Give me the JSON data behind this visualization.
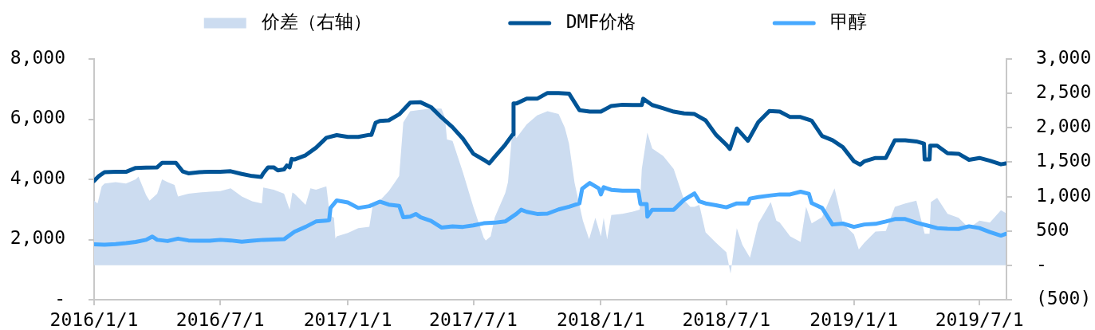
{
  "chart_data": {
    "type": "line",
    "legend": "top",
    "marker": "none",
    "line_style": "solid",
    "xlim": [
      "2016-01-01",
      "2019-08-09"
    ],
    "xticks": [
      {
        "value": "2016-01-01",
        "label": "2016/1/1"
      },
      {
        "value": "2016-07-01",
        "label": "2016/7/1"
      },
      {
        "value": "2017-01-01",
        "label": "2017/1/1"
      },
      {
        "value": "2017-07-01",
        "label": "2017/7/1"
      },
      {
        "value": "2018-01-01",
        "label": "2018/1/1"
      },
      {
        "value": "2018-07-01",
        "label": "2018/7/1"
      },
      {
        "value": "2019-01-01",
        "label": "2019/1/1"
      },
      {
        "value": "2019-07-01",
        "label": "2019/7/1"
      }
    ],
    "ylim": [
      0,
      8000
    ],
    "yticks": [
      {
        "value": 0,
        "label": "-"
      },
      {
        "value": 2000,
        "label": "2,000"
      },
      {
        "value": 4000,
        "label": "4,000"
      },
      {
        "value": 6000,
        "label": "6,000"
      },
      {
        "value": 8000,
        "label": "8,000"
      }
    ],
    "y2lim": [
      -500,
      3000
    ],
    "y2ticks": [
      {
        "value": -500,
        "label": "(500)"
      },
      {
        "value": 0,
        "label": "-"
      },
      500,
      {
        "value": 1000,
        "label": "1,000"
      },
      {
        "value": 1500,
        "label": "1,500"
      },
      {
        "value": 2000,
        "label": "2,000"
      },
      {
        "value": 2500,
        "label": "2,500"
      },
      {
        "value": 3000,
        "label": "3,000"
      }
    ],
    "series": [
      {
        "name": "价差（右轴）",
        "type": "area",
        "axis": "y2",
        "color": "#ccdcf0",
        "x": [
          "2016-01-01",
          "2016-01-06",
          "2016-01-12",
          "2016-01-16",
          "2016-02-01",
          "2016-02-16",
          "2016-03-01",
          "2016-03-05",
          "2016-03-16",
          "2016-03-21",
          "2016-04-01",
          "2016-04-08",
          "2016-04-16",
          "2016-04-26",
          "2016-05-01",
          "2016-05-16",
          "2016-06-01",
          "2016-06-16",
          "2016-07-01",
          "2016-07-16",
          "2016-08-01",
          "2016-08-16",
          "2016-08-30",
          "2016-09-01",
          "2016-09-16",
          "2016-10-01",
          "2016-10-09",
          "2016-10-13",
          "2016-10-16",
          "2016-11-01",
          "2016-11-08",
          "2016-11-16",
          "2016-12-01",
          "2016-12-06",
          "2016-12-12",
          "2016-12-14",
          "2016-12-16",
          "2017-01-01",
          "2017-01-16",
          "2017-02-01",
          "2017-02-06",
          "2017-02-16",
          "2017-03-01",
          "2017-03-10",
          "2017-03-16",
          "2017-03-22",
          "2017-04-01",
          "2017-04-16",
          "2017-05-01",
          "2017-05-16",
          "2017-05-21",
          "2017-05-24",
          "2017-06-01",
          "2017-06-16",
          "2017-07-01",
          "2017-07-16",
          "2017-07-19",
          "2017-07-26",
          "2017-08-01",
          "2017-08-16",
          "2017-08-20",
          "2017-08-27",
          "2017-09-01",
          "2017-09-16",
          "2017-10-01",
          "2017-10-16",
          "2017-11-01",
          "2017-11-10",
          "2017-11-16",
          "2017-11-24",
          "2017-12-06",
          "2017-12-15",
          "2017-12-24",
          "2018-01-01",
          "2018-01-05",
          "2018-01-10",
          "2018-01-16",
          "2018-02-01",
          "2018-02-16",
          "2018-02-26",
          "2018-03-01",
          "2018-03-09",
          "2018-03-16",
          "2018-04-01",
          "2018-04-16",
          "2018-05-01",
          "2018-05-10",
          "2018-05-16",
          "2018-05-23",
          "2018-06-01",
          "2018-06-16",
          "2018-07-01",
          "2018-07-07",
          "2018-07-16",
          "2018-07-24",
          "2018-08-04",
          "2018-08-16",
          "2018-09-03",
          "2018-09-11",
          "2018-09-16",
          "2018-10-01",
          "2018-10-16",
          "2018-10-24",
          "2018-11-01",
          "2018-11-16",
          "2018-12-04",
          "2018-12-16",
          "2019-01-01",
          "2019-01-08",
          "2019-01-16",
          "2019-02-01",
          "2019-02-16",
          "2019-03-01",
          "2019-03-16",
          "2019-04-01",
          "2019-04-13",
          "2019-04-20",
          "2019-04-22",
          "2019-05-01",
          "2019-05-16",
          "2019-06-01",
          "2019-06-16",
          "2019-07-01",
          "2019-07-16",
          "2019-08-01",
          "2019-08-08"
        ],
        "values": [
          940,
          900,
          1150,
          1190,
          1210,
          1190,
          1250,
          1290,
          1020,
          940,
          1040,
          1250,
          1210,
          1170,
          1000,
          1040,
          1060,
          1070,
          1080,
          1120,
          1000,
          930,
          900,
          1130,
          1100,
          1040,
          810,
          1060,
          1040,
          880,
          1120,
          1100,
          1150,
          730,
          690,
          390,
          420,
          470,
          540,
          560,
          880,
          940,
          1080,
          1210,
          1300,
          2080,
          2240,
          2260,
          2280,
          2280,
          2150,
          1830,
          1810,
          1350,
          850,
          400,
          360,
          420,
          700,
          1050,
          1210,
          2040,
          1850,
          2050,
          2180,
          2240,
          2200,
          2000,
          1770,
          1200,
          650,
          380,
          690,
          420,
          690,
          380,
          730,
          750,
          780,
          810,
          1400,
          1930,
          1700,
          1590,
          1400,
          950,
          850,
          850,
          880,
          480,
          330,
          190,
          -120,
          540,
          300,
          110,
          610,
          920,
          650,
          620,
          420,
          340,
          850,
          610,
          700,
          1120,
          610,
          450,
          230,
          330,
          490,
          500,
          850,
          900,
          940,
          460,
          460,
          920,
          980,
          750,
          690,
          540,
          650,
          620,
          800,
          760
        ]
      },
      {
        "name": "DMF价格",
        "type": "line",
        "color": "#005496",
        "x": [
          "2016-01-01",
          "2016-01-08",
          "2016-01-16",
          "2016-02-01",
          "2016-02-16",
          "2016-03-01",
          "2016-03-16",
          "2016-04-01",
          "2016-04-08",
          "2016-04-16",
          "2016-04-28",
          "2016-05-08",
          "2016-05-16",
          "2016-06-01",
          "2016-06-16",
          "2016-07-01",
          "2016-07-16",
          "2016-08-01",
          "2016-08-16",
          "2016-08-29",
          "2016-09-01",
          "2016-09-08",
          "2016-09-16",
          "2016-09-22",
          "2016-10-01",
          "2016-10-05",
          "2016-10-09",
          "2016-10-12",
          "2016-10-16",
          "2016-11-01",
          "2016-11-16",
          "2016-12-01",
          "2016-12-16",
          "2017-01-01",
          "2017-01-16",
          "2017-02-01",
          "2017-02-04",
          "2017-02-10",
          "2017-02-16",
          "2017-03-01",
          "2017-03-16",
          "2017-04-01",
          "2017-04-16",
          "2017-05-01",
          "2017-05-16",
          "2017-06-01",
          "2017-06-16",
          "2017-07-01",
          "2017-07-16",
          "2017-07-24",
          "2017-08-01",
          "2017-08-16",
          "2017-08-27",
          "2017-08-28",
          "2017-09-01",
          "2017-09-16",
          "2017-10-01",
          "2017-10-16",
          "2017-11-01",
          "2017-11-16",
          "2017-12-01",
          "2017-12-16",
          "2018-01-01",
          "2018-01-16",
          "2018-02-01",
          "2018-02-16",
          "2018-03-01",
          "2018-03-03",
          "2018-03-16",
          "2018-04-01",
          "2018-04-16",
          "2018-05-01",
          "2018-05-16",
          "2018-06-01",
          "2018-06-16",
          "2018-07-01",
          "2018-07-06",
          "2018-07-16",
          "2018-08-01",
          "2018-08-16",
          "2018-09-01",
          "2018-09-16",
          "2018-10-01",
          "2018-10-16",
          "2018-11-01",
          "2018-11-16",
          "2018-12-01",
          "2018-12-16",
          "2019-01-01",
          "2019-01-10",
          "2019-01-16",
          "2019-02-01",
          "2019-02-16",
          "2019-03-01",
          "2019-03-16",
          "2019-04-01",
          "2019-04-12",
          "2019-04-13",
          "2019-04-20",
          "2019-04-21",
          "2019-05-01",
          "2019-05-16",
          "2019-06-01",
          "2019-06-16",
          "2019-07-01",
          "2019-07-16",
          "2019-08-01",
          "2019-08-08"
        ],
        "values": [
          3950,
          4110,
          4240,
          4250,
          4250,
          4380,
          4390,
          4400,
          4550,
          4550,
          4550,
          4260,
          4200,
          4240,
          4250,
          4250,
          4270,
          4180,
          4110,
          4080,
          4200,
          4400,
          4400,
          4300,
          4330,
          4460,
          4400,
          4680,
          4660,
          4800,
          5050,
          5380,
          5470,
          5410,
          5410,
          5480,
          5480,
          5880,
          5940,
          5960,
          6160,
          6550,
          6560,
          6400,
          6060,
          5730,
          5350,
          4850,
          4650,
          4530,
          4750,
          5150,
          5500,
          6520,
          6520,
          6680,
          6680,
          6870,
          6870,
          6850,
          6300,
          6250,
          6250,
          6440,
          6480,
          6470,
          6470,
          6680,
          6470,
          6360,
          6250,
          6190,
          6170,
          5960,
          5480,
          5150,
          5010,
          5690,
          5280,
          5900,
          6270,
          6250,
          6070,
          6070,
          5950,
          5440,
          5300,
          5070,
          4600,
          4490,
          4600,
          4710,
          4710,
          5300,
          5300,
          5260,
          5190,
          4660,
          4660,
          5120,
          5120,
          4870,
          4850,
          4650,
          4710,
          4620,
          4500,
          4530
        ]
      },
      {
        "name": "甲醇",
        "type": "line",
        "color": "#47a9ff",
        "x": [
          "2016-01-01",
          "2016-01-16",
          "2016-02-01",
          "2016-02-16",
          "2016-03-01",
          "2016-03-16",
          "2016-03-25",
          "2016-04-01",
          "2016-04-16",
          "2016-05-01",
          "2016-05-16",
          "2016-06-01",
          "2016-06-16",
          "2016-07-01",
          "2016-07-16",
          "2016-08-01",
          "2016-08-16",
          "2016-09-01",
          "2016-09-16",
          "2016-10-01",
          "2016-10-16",
          "2016-11-01",
          "2016-11-16",
          "2016-12-01",
          "2016-12-05",
          "2016-12-07",
          "2016-12-16",
          "2017-01-01",
          "2017-01-16",
          "2017-02-01",
          "2017-02-16",
          "2017-03-01",
          "2017-03-16",
          "2017-03-22",
          "2017-04-01",
          "2017-04-09",
          "2017-04-16",
          "2017-05-01",
          "2017-05-16",
          "2017-06-01",
          "2017-06-16",
          "2017-07-01",
          "2017-07-16",
          "2017-08-01",
          "2017-08-16",
          "2017-09-01",
          "2017-09-08",
          "2017-09-16",
          "2017-10-01",
          "2017-10-16",
          "2017-11-01",
          "2017-11-16",
          "2017-12-01",
          "2017-12-05",
          "2017-12-16",
          "2017-12-29",
          "2018-01-01",
          "2018-01-05",
          "2018-01-16",
          "2018-02-01",
          "2018-02-16",
          "2018-02-24",
          "2018-02-27",
          "2018-03-08",
          "2018-03-09",
          "2018-03-16",
          "2018-04-01",
          "2018-04-16",
          "2018-05-01",
          "2018-05-16",
          "2018-05-23",
          "2018-06-01",
          "2018-06-16",
          "2018-07-01",
          "2018-07-16",
          "2018-08-01",
          "2018-08-04",
          "2018-08-16",
          "2018-09-01",
          "2018-09-16",
          "2018-10-01",
          "2018-10-16",
          "2018-10-28",
          "2018-11-01",
          "2018-11-16",
          "2018-12-01",
          "2018-12-16",
          "2019-01-01",
          "2019-01-16",
          "2019-02-01",
          "2019-02-16",
          "2019-03-01",
          "2019-03-16",
          "2019-04-01",
          "2019-04-16",
          "2019-05-01",
          "2019-05-16",
          "2019-06-01",
          "2019-06-16",
          "2019-07-01",
          "2019-07-16",
          "2019-08-01",
          "2019-08-08"
        ],
        "values": [
          1840,
          1830,
          1850,
          1880,
          1920,
          1990,
          2100,
          1990,
          1950,
          2030,
          1970,
          1960,
          1960,
          1990,
          1970,
          1930,
          1960,
          1990,
          2000,
          2010,
          2260,
          2420,
          2600,
          2630,
          2640,
          3050,
          3300,
          3230,
          3050,
          3110,
          3260,
          3160,
          3120,
          2740,
          2760,
          2850,
          2740,
          2620,
          2400,
          2440,
          2420,
          2470,
          2540,
          2560,
          2600,
          2850,
          2990,
          2920,
          2850,
          2860,
          3000,
          3090,
          3200,
          3690,
          3880,
          3700,
          3500,
          3740,
          3650,
          3620,
          3620,
          3620,
          3180,
          3180,
          2760,
          2990,
          2990,
          2990,
          3320,
          3530,
          3270,
          3200,
          3140,
          3070,
          3200,
          3200,
          3360,
          3410,
          3460,
          3500,
          3500,
          3590,
          3520,
          3210,
          3050,
          2500,
          2530,
          2420,
          2500,
          2520,
          2600,
          2680,
          2680,
          2560,
          2470,
          2380,
          2360,
          2350,
          2440,
          2380,
          2250,
          2130,
          2190
        ]
      }
    ]
  }
}
